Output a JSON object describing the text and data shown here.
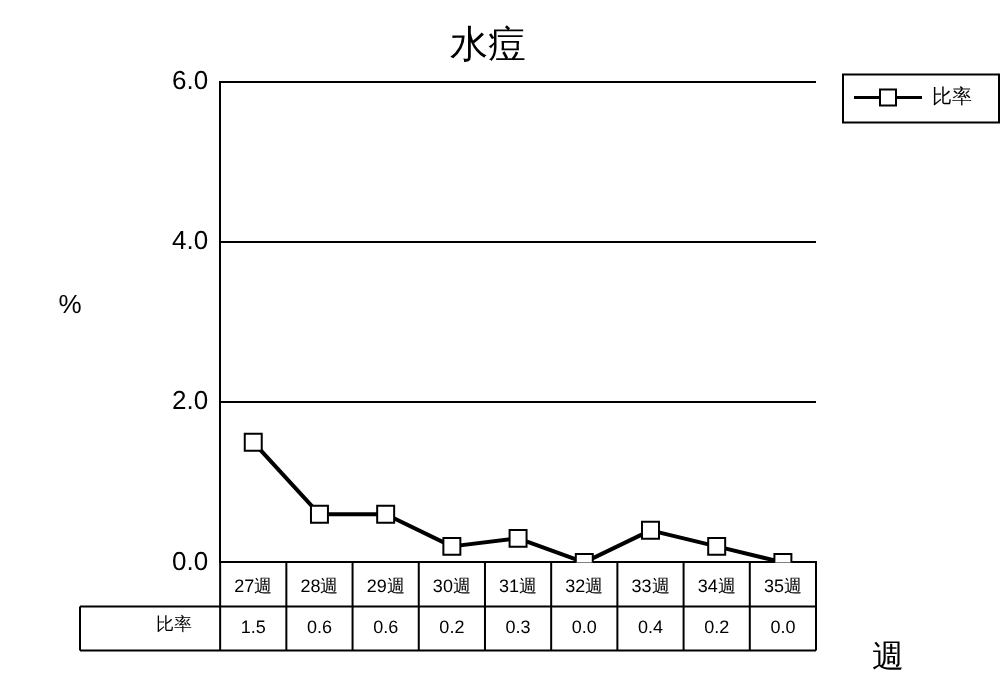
{
  "chart_data": {
    "type": "line",
    "title": "水痘",
    "xlabel": "週",
    "ylabel": "%",
    "categories": [
      "27週",
      "28週",
      "29週",
      "30週",
      "31週",
      "32週",
      "33週",
      "34週",
      "35週"
    ],
    "series": [
      {
        "name": "比率",
        "color": "#000000",
        "values": [
          1.5,
          0.6,
          0.6,
          0.2,
          0.3,
          0.0,
          0.4,
          0.2,
          0.0
        ],
        "value_labels": [
          "1.5",
          "0.6",
          "0.6",
          "0.2",
          "0.3",
          "0.0",
          "0.4",
          "0.2",
          "0.0"
        ]
      }
    ],
    "ylim": [
      0,
      6
    ],
    "yticks": [
      {
        "value": 0,
        "label": "0.0"
      },
      {
        "value": 2,
        "label": "2.0"
      },
      {
        "value": 4,
        "label": "4.0"
      },
      {
        "value": 6,
        "label": "6.0"
      }
    ],
    "grid": "y",
    "legend": "top right",
    "marker": "square",
    "line_style": "solid"
  }
}
